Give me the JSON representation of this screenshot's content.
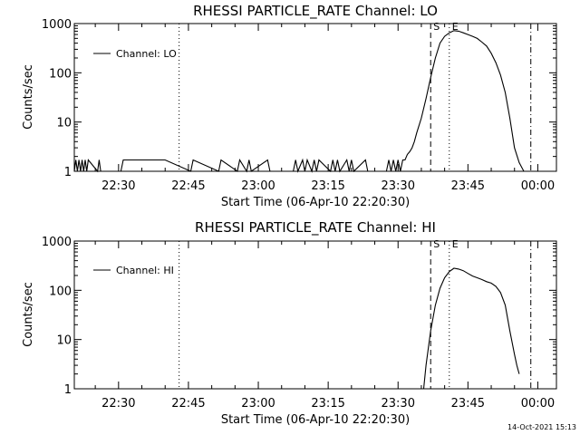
{
  "chart_data": [
    {
      "type": "line",
      "title": "RHESSI PARTICLE_RATE Channel: LO",
      "xlabel": "Start Time (06-Apr-10 22:20:30)",
      "ylabel": "Counts/sec",
      "y_scale": "log",
      "ylim": [
        1,
        1000
      ],
      "xlim": [
        "22:20:30",
        "00:04:00"
      ],
      "x_tick_labels": [
        "22:30",
        "22:45",
        "23:00",
        "23:15",
        "23:30",
        "23:45",
        "00:00"
      ],
      "y_tick_labels": [
        "1",
        "10",
        "100",
        "1000"
      ],
      "legend": {
        "placement": "top-left",
        "entries": [
          "Channel: LO"
        ]
      },
      "grid": false,
      "vertical_markers": [
        {
          "time": "22:43:00",
          "style": "dotted",
          "label": ""
        },
        {
          "time": "23:37:00",
          "style": "dashed",
          "label": "S"
        },
        {
          "time": "23:41:00",
          "style": "dotted",
          "label": "E"
        },
        {
          "time": "23:58:30",
          "style": "dash-dot",
          "label": ""
        }
      ],
      "series": [
        {
          "name": "Channel: LO",
          "x": [
            "22:20:30",
            "22:20:50",
            "22:21:10",
            "22:21:30",
            "22:21:50",
            "22:22:10",
            "22:22:30",
            "22:22:50",
            "22:23:10",
            "22:23:30",
            "22:25:30",
            "22:25:50",
            "22:26:10",
            "22:30:30",
            "22:31:00",
            "22:40:00",
            "22:45:30",
            "22:46:00",
            "22:51:30",
            "22:52:00",
            "22:55:30",
            "22:56:00",
            "22:57:30",
            "22:58:00",
            "22:58:30",
            "23:02:00",
            "23:02:30",
            "23:07:30",
            "23:08:00",
            "23:08:30",
            "23:09:30",
            "23:10:00",
            "23:10:30",
            "23:11:30",
            "23:12:00",
            "23:12:30",
            "23:13:00",
            "23:15:30",
            "23:16:00",
            "23:16:30",
            "23:17:00",
            "23:17:30",
            "23:19:00",
            "23:19:30",
            "23:20:00",
            "23:20:30",
            "23:23:00",
            "23:23:30",
            "23:27:30",
            "23:28:00",
            "23:28:30",
            "23:29:00",
            "23:29:30",
            "23:30:00",
            "23:30:30",
            "23:31:00",
            "23:31:30",
            "23:32:00",
            "23:32:30",
            "23:33:00",
            "23:33:30",
            "23:34:00",
            "23:35:00",
            "23:36:00",
            "23:37:00",
            "23:38:00",
            "23:39:00",
            "23:40:00",
            "23:41:00",
            "23:42:00",
            "23:43:00",
            "23:44:00",
            "23:45:00",
            "23:46:00",
            "23:47:00",
            "23:48:00",
            "23:49:00",
            "23:50:00",
            "23:51:00",
            "23:52:00",
            "23:53:00",
            "23:54:00",
            "23:55:00",
            "23:56:00",
            "23:57:00",
            "23:58:00",
            "23:58:30"
          ],
          "values": [
            1,
            1.7,
            1,
            1.7,
            1,
            1.7,
            1,
            1.7,
            1,
            1.7,
            1,
            1.7,
            1,
            1,
            1.7,
            1.7,
            1,
            1.7,
            1,
            1.7,
            1,
            1.7,
            1,
            1.7,
            1,
            1.7,
            1,
            1,
            1.7,
            1,
            1.7,
            1,
            1.7,
            1,
            1.7,
            1,
            1.7,
            1,
            1.7,
            1,
            1.7,
            1,
            1.7,
            1,
            1.7,
            1,
            1.7,
            1,
            1,
            1.7,
            1,
            1.7,
            1,
            1.7,
            1,
            1.7,
            1.7,
            2.2,
            2.5,
            3,
            4,
            6,
            12,
            30,
            80,
            200,
            400,
            550,
            650,
            720,
            700,
            650,
            600,
            550,
            500,
            420,
            350,
            250,
            160,
            90,
            40,
            12,
            3,
            1.5,
            1,
            1,
            1
          ]
        }
      ]
    },
    {
      "type": "line",
      "title": "RHESSI PARTICLE_RATE Channel: HI",
      "xlabel": "Start Time (06-Apr-10 22:20:30)",
      "ylabel": "Counts/sec",
      "y_scale": "log",
      "ylim": [
        1,
        1000
      ],
      "xlim": [
        "22:20:30",
        "00:04:00"
      ],
      "x_tick_labels": [
        "22:30",
        "22:45",
        "23:00",
        "23:15",
        "23:30",
        "23:45",
        "00:00"
      ],
      "y_tick_labels": [
        "1",
        "10",
        "100",
        "1000"
      ],
      "legend": {
        "placement": "top-left",
        "entries": [
          "Channel: HI"
        ]
      },
      "grid": false,
      "vertical_markers": [
        {
          "time": "22:43:00",
          "style": "dotted",
          "label": ""
        },
        {
          "time": "23:37:00",
          "style": "dashed",
          "label": "S"
        },
        {
          "time": "23:41:00",
          "style": "dotted",
          "label": "E"
        },
        {
          "time": "23:58:30",
          "style": "dash-dot",
          "label": ""
        }
      ],
      "series": [
        {
          "name": "Channel: HI",
          "x": [
            "23:35:30",
            "23:36:00",
            "23:37:00",
            "23:38:00",
            "23:39:00",
            "23:40:00",
            "23:41:00",
            "23:42:00",
            "23:43:00",
            "23:44:00",
            "23:45:00",
            "23:46:00",
            "23:47:00",
            "23:48:00",
            "23:49:00",
            "23:50:00",
            "23:51:00",
            "23:52:00",
            "23:53:00",
            "23:54:00",
            "23:55:00",
            "23:55:30",
            "23:56:00"
          ],
          "values": [
            1,
            3,
            15,
            50,
            110,
            180,
            240,
            280,
            270,
            250,
            220,
            195,
            180,
            165,
            150,
            140,
            120,
            90,
            50,
            15,
            5,
            3,
            2
          ]
        }
      ]
    }
  ],
  "footer": {
    "timestamp": "14-Oct-2021 15:13"
  }
}
